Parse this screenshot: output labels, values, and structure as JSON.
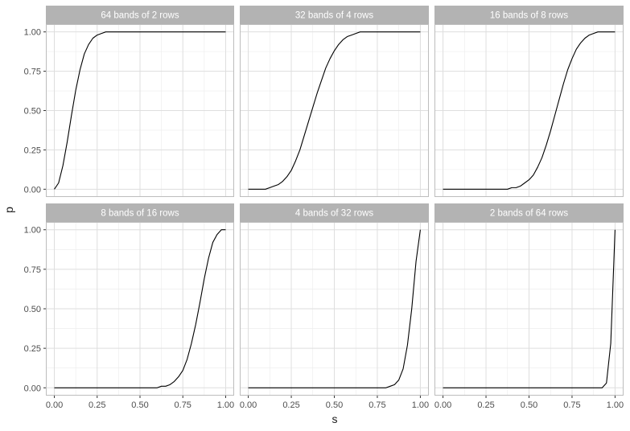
{
  "chart_data": {
    "type": "line",
    "layout": "facet grid, 2 rows x 3 columns",
    "xlabel": "s",
    "ylabel": "p",
    "xlim": [
      0,
      1
    ],
    "ylim": [
      0,
      1
    ],
    "x_ticks": [
      "0.00",
      "0.25",
      "0.50",
      "0.75",
      "1.00"
    ],
    "y_ticks": [
      "0.00",
      "0.25",
      "0.50",
      "0.75",
      "1.00"
    ],
    "grid": true,
    "line_color": "#000000",
    "strip_color": "#b3b3b3",
    "panel_border_color": "#bdbdbd",
    "grid_color": "#ebebeb",
    "x": [
      0.0,
      0.025,
      0.05,
      0.075,
      0.1,
      0.125,
      0.15,
      0.175,
      0.2,
      0.225,
      0.25,
      0.275,
      0.3,
      0.325,
      0.35,
      0.375,
      0.4,
      0.425,
      0.45,
      0.475,
      0.5,
      0.525,
      0.55,
      0.575,
      0.6,
      0.625,
      0.65,
      0.675,
      0.7,
      0.725,
      0.75,
      0.775,
      0.8,
      0.825,
      0.85,
      0.875,
      0.9,
      0.925,
      0.95,
      0.975,
      1.0
    ],
    "panels": [
      {
        "title": "64 bands of 2 rows",
        "values": [
          0.0,
          0.04,
          0.15,
          0.3,
          0.47,
          0.63,
          0.76,
          0.86,
          0.92,
          0.96,
          0.98,
          0.99,
          1.0,
          1.0,
          1.0,
          1.0,
          1.0,
          1.0,
          1.0,
          1.0,
          1.0,
          1.0,
          1.0,
          1.0,
          1.0,
          1.0,
          1.0,
          1.0,
          1.0,
          1.0,
          1.0,
          1.0,
          1.0,
          1.0,
          1.0,
          1.0,
          1.0,
          1.0,
          1.0,
          1.0,
          1.0
        ]
      },
      {
        "title": "32 bands of 4 rows",
        "values": [
          0.0,
          0.0,
          0.0,
          0.0,
          0.0,
          0.01,
          0.02,
          0.03,
          0.05,
          0.08,
          0.12,
          0.18,
          0.25,
          0.34,
          0.43,
          0.52,
          0.61,
          0.69,
          0.77,
          0.83,
          0.88,
          0.92,
          0.95,
          0.97,
          0.98,
          0.99,
          1.0,
          1.0,
          1.0,
          1.0,
          1.0,
          1.0,
          1.0,
          1.0,
          1.0,
          1.0,
          1.0,
          1.0,
          1.0,
          1.0,
          1.0
        ]
      },
      {
        "title": "16 bands of 8 rows",
        "values": [
          0.0,
          0.0,
          0.0,
          0.0,
          0.0,
          0.0,
          0.0,
          0.0,
          0.0,
          0.0,
          0.0,
          0.0,
          0.0,
          0.0,
          0.0,
          0.0,
          0.01,
          0.01,
          0.02,
          0.04,
          0.06,
          0.09,
          0.14,
          0.2,
          0.28,
          0.37,
          0.47,
          0.57,
          0.67,
          0.76,
          0.83,
          0.89,
          0.93,
          0.96,
          0.98,
          0.99,
          1.0,
          1.0,
          1.0,
          1.0,
          1.0
        ]
      },
      {
        "title": "8 bands of 16 rows",
        "values": [
          0.0,
          0.0,
          0.0,
          0.0,
          0.0,
          0.0,
          0.0,
          0.0,
          0.0,
          0.0,
          0.0,
          0.0,
          0.0,
          0.0,
          0.0,
          0.0,
          0.0,
          0.0,
          0.0,
          0.0,
          0.0,
          0.0,
          0.0,
          0.0,
          0.0,
          0.01,
          0.01,
          0.02,
          0.04,
          0.07,
          0.11,
          0.18,
          0.28,
          0.4,
          0.54,
          0.69,
          0.82,
          0.92,
          0.97,
          1.0,
          1.0
        ]
      },
      {
        "title": "4 bands of 32 rows",
        "values": [
          0.0,
          0.0,
          0.0,
          0.0,
          0.0,
          0.0,
          0.0,
          0.0,
          0.0,
          0.0,
          0.0,
          0.0,
          0.0,
          0.0,
          0.0,
          0.0,
          0.0,
          0.0,
          0.0,
          0.0,
          0.0,
          0.0,
          0.0,
          0.0,
          0.0,
          0.0,
          0.0,
          0.0,
          0.0,
          0.0,
          0.0,
          0.0,
          0.0,
          0.01,
          0.02,
          0.05,
          0.12,
          0.27,
          0.5,
          0.8,
          1.0
        ]
      },
      {
        "title": "2 bands of 64 rows",
        "values": [
          0.0,
          0.0,
          0.0,
          0.0,
          0.0,
          0.0,
          0.0,
          0.0,
          0.0,
          0.0,
          0.0,
          0.0,
          0.0,
          0.0,
          0.0,
          0.0,
          0.0,
          0.0,
          0.0,
          0.0,
          0.0,
          0.0,
          0.0,
          0.0,
          0.0,
          0.0,
          0.0,
          0.0,
          0.0,
          0.0,
          0.0,
          0.0,
          0.0,
          0.0,
          0.0,
          0.0,
          0.0,
          0.0,
          0.03,
          0.28,
          1.0
        ]
      }
    ]
  }
}
